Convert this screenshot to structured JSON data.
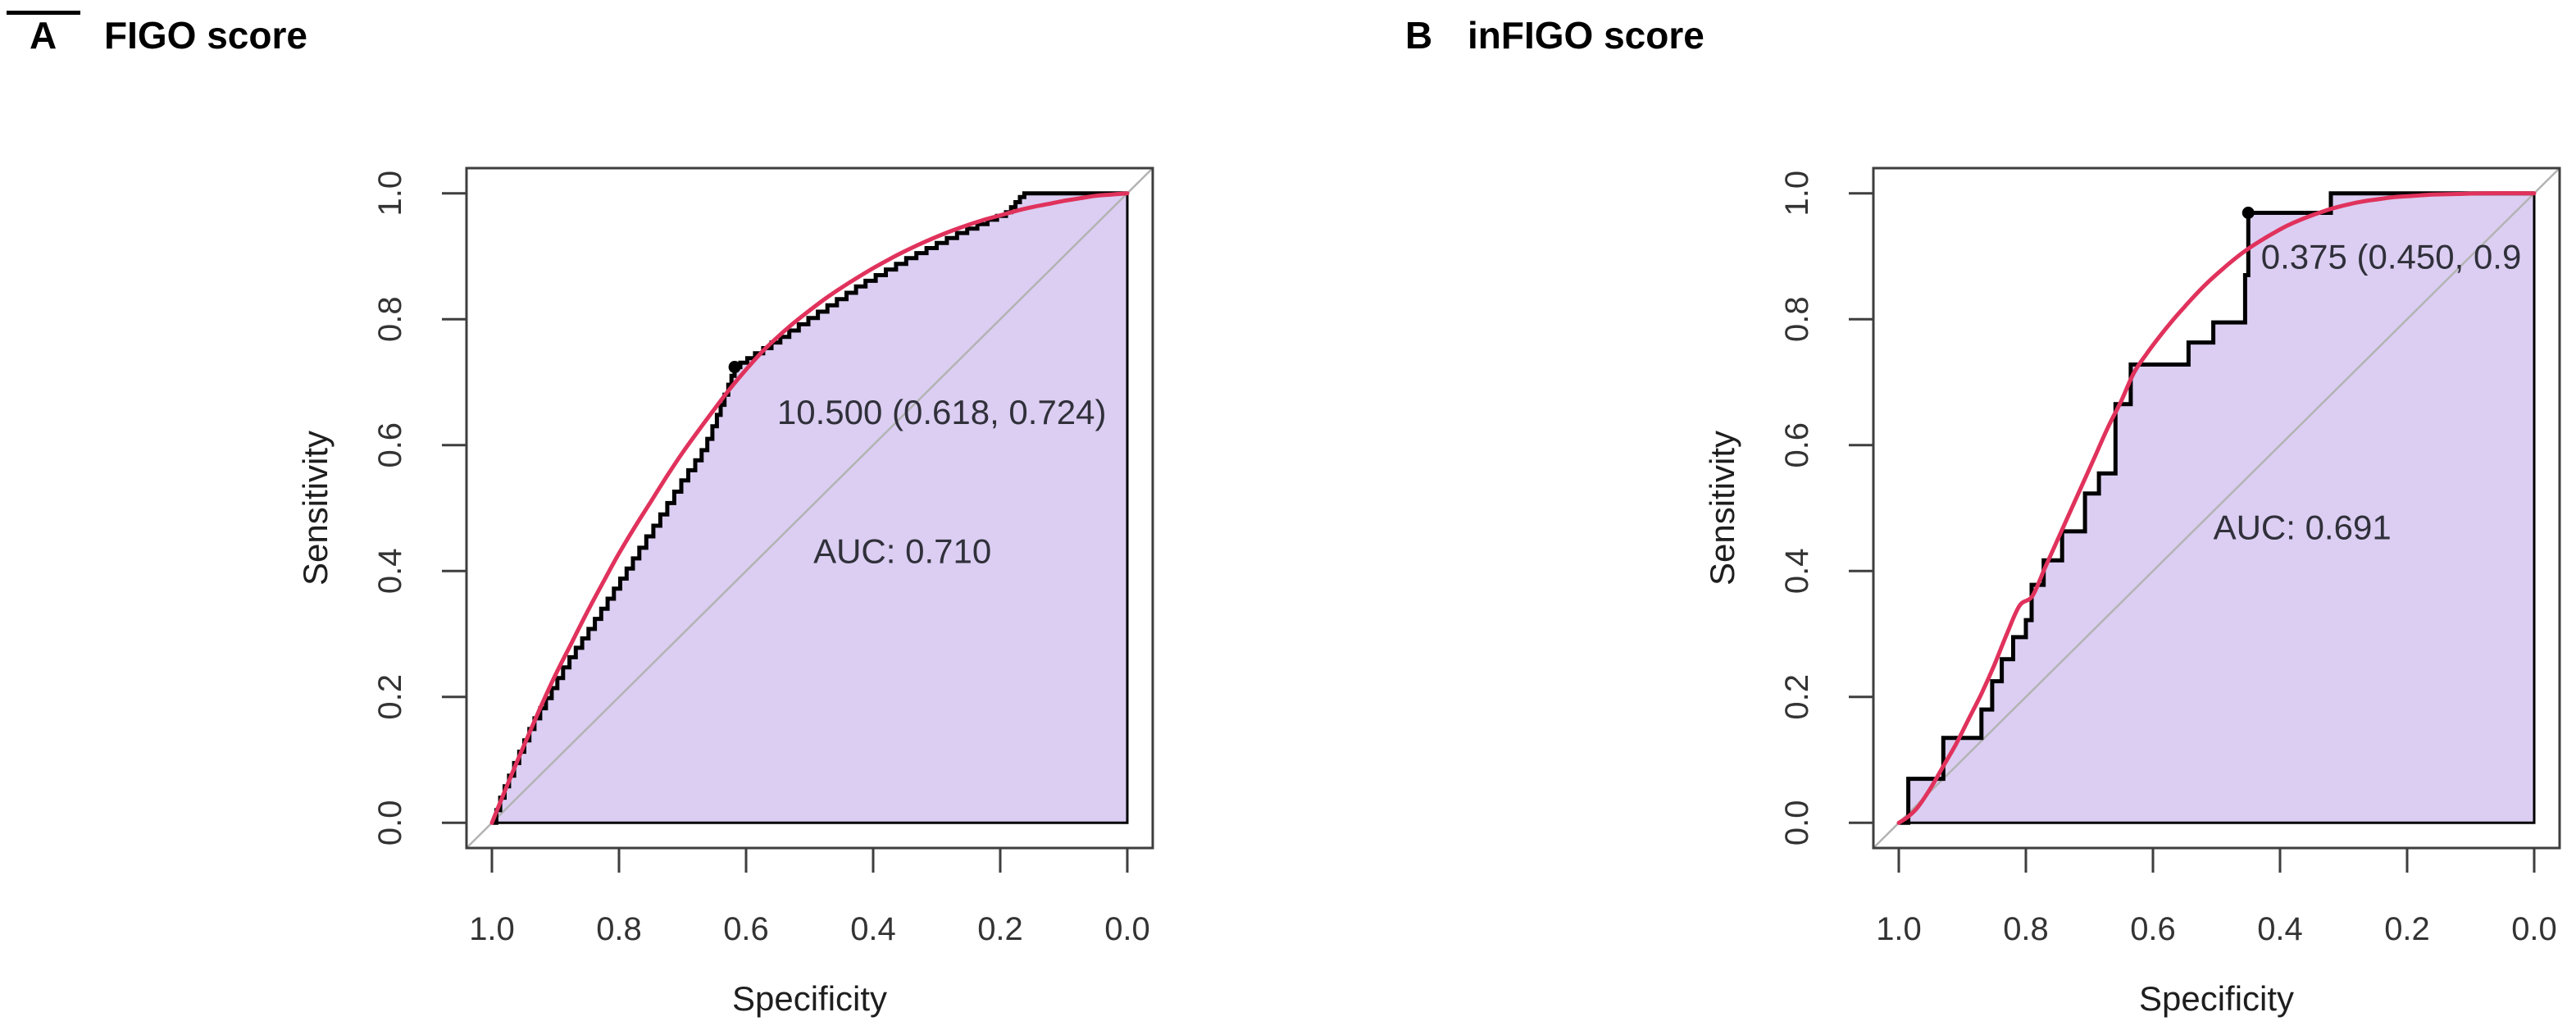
{
  "figure": {
    "background": "#ffffff",
    "panels": [
      {
        "panel_label": "A",
        "title": "FIGO score"
      },
      {
        "panel_label": "B",
        "title": "inFIGO score"
      }
    ]
  },
  "chart_data": [
    {
      "type": "line",
      "name": "roc-curve-figo",
      "panel": "A",
      "title": "FIGO score",
      "xlabel": "Specificity",
      "ylabel": "Sensitivity",
      "x_ticks": [
        1.0,
        0.8,
        0.6,
        0.4,
        0.2,
        0.0
      ],
      "x_tick_labels": [
        "1.0",
        "0.8",
        "0.6",
        "0.4",
        "0.2",
        "0.0"
      ],
      "y_ticks": [
        0.0,
        0.2,
        0.4,
        0.6,
        0.8,
        1.0
      ],
      "y_tick_labels": [
        "0.0",
        "0.2",
        "0.4",
        "0.6",
        "0.8",
        "1.0"
      ],
      "xlim": [
        1.0,
        0.0
      ],
      "ylim": [
        0.0,
        1.0
      ],
      "x_reversed": true,
      "grid": false,
      "legend": "none",
      "auc": 0.71,
      "auc_label": "AUC: 0.710",
      "threshold_label": "10.500 (0.618, 0.724)",
      "best_threshold": {
        "threshold": 10.5,
        "specificity": 0.618,
        "sensitivity": 0.724
      },
      "label_positions": {
        "threshold": {
          "specificity": 0.292,
          "sensitivity": 0.653,
          "anchor": "middle"
        },
        "auc": {
          "specificity": 0.354,
          "sensitivity": 0.432,
          "anchor": "middle"
        }
      },
      "colors": {
        "area_fill": "#dbcef2",
        "empirical_line": "#000000",
        "smooth_line": "#e0325c",
        "chance_line": "#b3b3b3",
        "axis": "#3e3e3e",
        "text": "#30303a",
        "marker": "#000000"
      },
      "series": [
        {
          "name": "empirical-roc",
          "style": "step",
          "color": "#000000",
          "points": [
            [
              1.0,
              0.0
            ],
            [
              0.993,
              0.02
            ],
            [
              0.987,
              0.04
            ],
            [
              0.98,
              0.058
            ],
            [
              0.973,
              0.075
            ],
            [
              0.965,
              0.095
            ],
            [
              0.957,
              0.113
            ],
            [
              0.949,
              0.131
            ],
            [
              0.941,
              0.149
            ],
            [
              0.933,
              0.166
            ],
            [
              0.924,
              0.182
            ],
            [
              0.915,
              0.198
            ],
            [
              0.906,
              0.214
            ],
            [
              0.897,
              0.23
            ],
            [
              0.888,
              0.247
            ],
            [
              0.878,
              0.263
            ],
            [
              0.868,
              0.278
            ],
            [
              0.858,
              0.293
            ],
            [
              0.848,
              0.308
            ],
            [
              0.838,
              0.324
            ],
            [
              0.828,
              0.34
            ],
            [
              0.818,
              0.356
            ],
            [
              0.808,
              0.372
            ],
            [
              0.798,
              0.388
            ],
            [
              0.788,
              0.404
            ],
            [
              0.778,
              0.42
            ],
            [
              0.768,
              0.437
            ],
            [
              0.757,
              0.455
            ],
            [
              0.746,
              0.472
            ],
            [
              0.735,
              0.49
            ],
            [
              0.724,
              0.508
            ],
            [
              0.713,
              0.526
            ],
            [
              0.702,
              0.544
            ],
            [
              0.691,
              0.56
            ],
            [
              0.68,
              0.576
            ],
            [
              0.67,
              0.592
            ],
            [
              0.661,
              0.61
            ],
            [
              0.653,
              0.63
            ],
            [
              0.646,
              0.648
            ],
            [
              0.64,
              0.664
            ],
            [
              0.634,
              0.68
            ],
            [
              0.628,
              0.696
            ],
            [
              0.623,
              0.71
            ],
            [
              0.618,
              0.724
            ],
            [
              0.609,
              0.731
            ],
            [
              0.598,
              0.738
            ],
            [
              0.586,
              0.746
            ],
            [
              0.573,
              0.754
            ],
            [
              0.56,
              0.763
            ],
            [
              0.546,
              0.772
            ],
            [
              0.532,
              0.782
            ],
            [
              0.517,
              0.792
            ],
            [
              0.502,
              0.802
            ],
            [
              0.487,
              0.812
            ],
            [
              0.472,
              0.822
            ],
            [
              0.457,
              0.832
            ],
            [
              0.442,
              0.842
            ],
            [
              0.427,
              0.852
            ],
            [
              0.412,
              0.861
            ],
            [
              0.396,
              0.87
            ],
            [
              0.38,
              0.879
            ],
            [
              0.364,
              0.888
            ],
            [
              0.348,
              0.897
            ],
            [
              0.332,
              0.905
            ],
            [
              0.316,
              0.913
            ],
            [
              0.3,
              0.921
            ],
            [
              0.284,
              0.929
            ],
            [
              0.268,
              0.937
            ],
            [
              0.252,
              0.944
            ],
            [
              0.236,
              0.951
            ],
            [
              0.22,
              0.958
            ],
            [
              0.205,
              0.964
            ],
            [
              0.191,
              0.97
            ],
            [
              0.183,
              0.978
            ],
            [
              0.176,
              0.986
            ],
            [
              0.169,
              0.994
            ],
            [
              0.162,
              1.0
            ],
            [
              0.0,
              1.0
            ]
          ]
        },
        {
          "name": "smoothed-roc",
          "style": "smooth",
          "color": "#e0325c",
          "points": [
            [
              1.0,
              0.0
            ],
            [
              0.975,
              0.062
            ],
            [
              0.95,
              0.122
            ],
            [
              0.925,
              0.18
            ],
            [
              0.9,
              0.235
            ],
            [
              0.875,
              0.285
            ],
            [
              0.85,
              0.335
            ],
            [
              0.825,
              0.382
            ],
            [
              0.8,
              0.428
            ],
            [
              0.775,
              0.47
            ],
            [
              0.75,
              0.51
            ],
            [
              0.725,
              0.55
            ],
            [
              0.7,
              0.588
            ],
            [
              0.675,
              0.623
            ],
            [
              0.65,
              0.657
            ],
            [
              0.625,
              0.69
            ],
            [
              0.6,
              0.72
            ],
            [
              0.575,
              0.748
            ],
            [
              0.55,
              0.772
            ],
            [
              0.525,
              0.794
            ],
            [
              0.5,
              0.814
            ],
            [
              0.475,
              0.833
            ],
            [
              0.45,
              0.85
            ],
            [
              0.425,
              0.866
            ],
            [
              0.4,
              0.881
            ],
            [
              0.375,
              0.895
            ],
            [
              0.35,
              0.908
            ],
            [
              0.325,
              0.92
            ],
            [
              0.3,
              0.931
            ],
            [
              0.275,
              0.941
            ],
            [
              0.25,
              0.95
            ],
            [
              0.225,
              0.958
            ],
            [
              0.2,
              0.965
            ],
            [
              0.175,
              0.972
            ],
            [
              0.15,
              0.978
            ],
            [
              0.125,
              0.983
            ],
            [
              0.1,
              0.988
            ],
            [
              0.075,
              0.992
            ],
            [
              0.05,
              0.996
            ],
            [
              0.025,
              0.998
            ],
            [
              0.0,
              1.0
            ]
          ]
        },
        {
          "name": "chance-line",
          "style": "straight",
          "color": "#b3b3b3",
          "points": [
            [
              1.0,
              0.0
            ],
            [
              0.0,
              1.0
            ]
          ]
        }
      ]
    },
    {
      "type": "line",
      "name": "roc-curve-infigo",
      "panel": "B",
      "title": "inFIGO score",
      "xlabel": "Specificity",
      "ylabel": "Sensitivity",
      "x_ticks": [
        1.0,
        0.8,
        0.6,
        0.4,
        0.2,
        0.0
      ],
      "x_tick_labels": [
        "1.0",
        "0.8",
        "0.6",
        "0.4",
        "0.2",
        "0.0"
      ],
      "y_ticks": [
        0.0,
        0.2,
        0.4,
        0.6,
        0.8,
        1.0
      ],
      "y_tick_labels": [
        "0.0",
        "0.2",
        "0.4",
        "0.6",
        "0.8",
        "1.0"
      ],
      "xlim": [
        1.0,
        0.0
      ],
      "ylim": [
        0.0,
        1.0
      ],
      "x_reversed": true,
      "grid": false,
      "legend": "none",
      "auc": 0.691,
      "auc_label": "AUC: 0.691",
      "threshold_label": "0.375 (0.450, 0.9",
      "best_threshold": {
        "threshold": 0.375,
        "specificity": 0.45,
        "sensitivity": 0.969
      },
      "label_positions": {
        "threshold": {
          "specificity": 0.43,
          "sensitivity": 0.9,
          "anchor": "start"
        },
        "auc": {
          "specificity": 0.365,
          "sensitivity": 0.47,
          "anchor": "middle"
        }
      },
      "colors": {
        "area_fill": "#dbcef2",
        "empirical_line": "#000000",
        "smooth_line": "#e0325c",
        "chance_line": "#b3b3b3",
        "axis": "#3e3e3e",
        "text": "#30303a",
        "marker": "#000000"
      },
      "series": [
        {
          "name": "empirical-roc",
          "style": "step",
          "color": "#000000",
          "points": [
            [
              1.0,
              0.0
            ],
            [
              0.985,
              0.07
            ],
            [
              0.93,
              0.135
            ],
            [
              0.87,
              0.18
            ],
            [
              0.853,
              0.225
            ],
            [
              0.838,
              0.26
            ],
            [
              0.82,
              0.295
            ],
            [
              0.8,
              0.322
            ],
            [
              0.791,
              0.378
            ],
            [
              0.772,
              0.417
            ],
            [
              0.743,
              0.463
            ],
            [
              0.707,
              0.523
            ],
            [
              0.685,
              0.555
            ],
            [
              0.659,
              0.665
            ],
            [
              0.635,
              0.728
            ],
            [
              0.544,
              0.763
            ],
            [
              0.505,
              0.795
            ],
            [
              0.455,
              0.87
            ],
            [
              0.45,
              0.969
            ],
            [
              0.32,
              1.0
            ],
            [
              0.0,
              1.0
            ]
          ]
        },
        {
          "name": "smoothed-roc",
          "style": "smooth",
          "color": "#e0325c",
          "points": [
            [
              1.0,
              0.0
            ],
            [
              0.985,
              0.01
            ],
            [
              0.97,
              0.025
            ],
            [
              0.95,
              0.055
            ],
            [
              0.93,
              0.09
            ],
            [
              0.91,
              0.125
            ],
            [
              0.89,
              0.165
            ],
            [
              0.87,
              0.205
            ],
            [
              0.85,
              0.25
            ],
            [
              0.83,
              0.3
            ],
            [
              0.81,
              0.345
            ],
            [
              0.79,
              0.36
            ],
            [
              0.77,
              0.405
            ],
            [
              0.75,
              0.45
            ],
            [
              0.73,
              0.495
            ],
            [
              0.71,
              0.54
            ],
            [
              0.69,
              0.585
            ],
            [
              0.67,
              0.63
            ],
            [
              0.65,
              0.67
            ],
            [
              0.63,
              0.715
            ],
            [
              0.61,
              0.745
            ],
            [
              0.59,
              0.772
            ],
            [
              0.57,
              0.797
            ],
            [
              0.55,
              0.82
            ],
            [
              0.53,
              0.842
            ],
            [
              0.51,
              0.862
            ],
            [
              0.49,
              0.88
            ],
            [
              0.47,
              0.897
            ],
            [
              0.45,
              0.912
            ],
            [
              0.43,
              0.925
            ],
            [
              0.41,
              0.937
            ],
            [
              0.39,
              0.948
            ],
            [
              0.37,
              0.957
            ],
            [
              0.35,
              0.965
            ],
            [
              0.33,
              0.972
            ],
            [
              0.31,
              0.978
            ],
            [
              0.29,
              0.983
            ],
            [
              0.27,
              0.987
            ],
            [
              0.25,
              0.99
            ],
            [
              0.22,
              0.994
            ],
            [
              0.19,
              0.996
            ],
            [
              0.16,
              0.998
            ],
            [
              0.12,
              0.999
            ],
            [
              0.08,
              1.0
            ],
            [
              0.0,
              1.0
            ]
          ]
        },
        {
          "name": "chance-line",
          "style": "straight",
          "color": "#b3b3b3",
          "points": [
            [
              1.0,
              0.0
            ],
            [
              0.0,
              1.0
            ]
          ]
        }
      ]
    }
  ]
}
